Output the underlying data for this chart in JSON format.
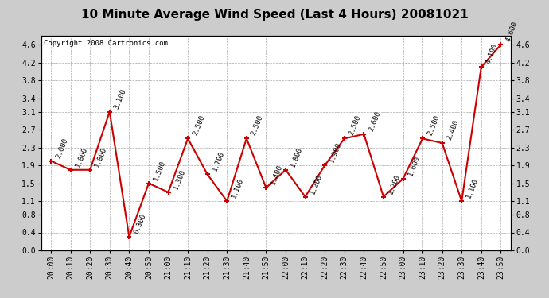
{
  "title": "10 Minute Average Wind Speed (Last 4 Hours) 20081021",
  "copyright": "Copyright 2008 Cartronics.com",
  "x_labels": [
    "20:00",
    "20:10",
    "20:20",
    "20:30",
    "20:40",
    "20:50",
    "21:00",
    "21:10",
    "21:20",
    "21:30",
    "21:40",
    "21:50",
    "22:00",
    "22:10",
    "22:20",
    "22:30",
    "22:40",
    "22:50",
    "23:00",
    "23:10",
    "23:20",
    "23:30",
    "23:40",
    "23:50"
  ],
  "y_values": [
    2.0,
    1.8,
    1.8,
    3.1,
    0.3,
    1.5,
    1.3,
    2.5,
    1.7,
    1.1,
    2.5,
    1.4,
    1.8,
    1.2,
    1.9,
    2.5,
    2.6,
    1.2,
    1.6,
    2.5,
    2.4,
    1.1,
    4.1,
    4.6
  ],
  "line_color": "#cc0000",
  "marker_color": "#cc0000",
  "bg_color": "#ffffff",
  "outer_bg": "#cccccc",
  "grid_color": "#aaaaaa",
  "ylim": [
    0.0,
    4.8
  ],
  "yticks": [
    0.0,
    0.4,
    0.8,
    1.1,
    1.5,
    1.9,
    2.3,
    2.7,
    3.1,
    3.4,
    3.8,
    4.2,
    4.6
  ],
  "title_fontsize": 11,
  "label_fontsize": 7,
  "annotation_fontsize": 6.5,
  "copyright_fontsize": 6.5
}
